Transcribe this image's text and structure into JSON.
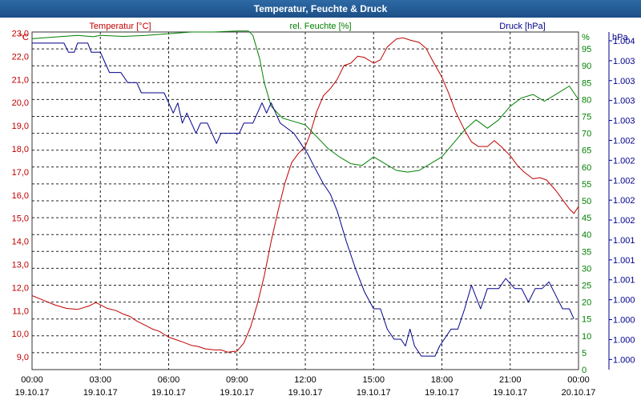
{
  "title": "Temperatur, Feuchte & Druck",
  "colors": {
    "temperature": "#c00000",
    "humidity": "#008000",
    "pressure": "#00008b",
    "title_bg": "#1f5c99"
  },
  "chart_data": {
    "type": "line",
    "title": "Temperatur, Feuchte & Druck",
    "x_ticks": [
      {
        "time": "00:00",
        "date": "19.10.17"
      },
      {
        "time": "03:00",
        "date": "19.10.17"
      },
      {
        "time": "06:00",
        "date": "19.10.17"
      },
      {
        "time": "09:00",
        "date": "19.10.17"
      },
      {
        "time": "12:00",
        "date": "19.10.17"
      },
      {
        "time": "15:00",
        "date": "19.10.17"
      },
      {
        "time": "18:00",
        "date": "19.10.17"
      },
      {
        "time": "21:00",
        "date": "19.10.17"
      },
      {
        "time": "00:00",
        "date": "20.10.17"
      }
    ],
    "xlim_hours": [
      0,
      24
    ],
    "axes": {
      "temperature": {
        "label": "Temperatur [°C]",
        "unit": "°C",
        "ylim": [
          8.45,
          23.05
        ],
        "ticks": [
          {
            "v": 9.0,
            "t": "9,0"
          },
          {
            "v": 10.0,
            "t": "10,0"
          },
          {
            "v": 11.0,
            "t": "11,0"
          },
          {
            "v": 12.0,
            "t": "12,0"
          },
          {
            "v": 13.0,
            "t": "13,0"
          },
          {
            "v": 14.0,
            "t": "14,0"
          },
          {
            "v": 15.0,
            "t": "15,0"
          },
          {
            "v": 16.0,
            "t": "16,0"
          },
          {
            "v": 17.0,
            "t": "17,0"
          },
          {
            "v": 18.0,
            "t": "18,0"
          },
          {
            "v": 19.0,
            "t": "19,0"
          },
          {
            "v": 20.0,
            "t": "20,0"
          },
          {
            "v": 21.0,
            "t": "21,0"
          },
          {
            "v": 22.0,
            "t": "22,0"
          },
          {
            "v": 23.0,
            "t": "23,0"
          }
        ]
      },
      "humidity": {
        "label": "rel. Feuchte [%]",
        "unit": "%",
        "ylim": [
          0,
          100
        ],
        "ticks": [
          {
            "v": 0,
            "t": "0"
          },
          {
            "v": 5,
            "t": "5"
          },
          {
            "v": 10,
            "t": "10"
          },
          {
            "v": 15,
            "t": "15"
          },
          {
            "v": 20,
            "t": "20"
          },
          {
            "v": 25,
            "t": "25"
          },
          {
            "v": 30,
            "t": "30"
          },
          {
            "v": 35,
            "t": "35"
          },
          {
            "v": 40,
            "t": "40"
          },
          {
            "v": 45,
            "t": "45"
          },
          {
            "v": 50,
            "t": "50"
          },
          {
            "v": 55,
            "t": "55"
          },
          {
            "v": 60,
            "t": "60"
          },
          {
            "v": 65,
            "t": "65"
          },
          {
            "v": 70,
            "t": "70"
          },
          {
            "v": 75,
            "t": "75"
          },
          {
            "v": 80,
            "t": "80"
          },
          {
            "v": 85,
            "t": "85"
          },
          {
            "v": 90,
            "t": "90"
          },
          {
            "v": 95,
            "t": "95"
          }
        ]
      },
      "pressure": {
        "label": "Druck [hPa]",
        "unit": "hPa",
        "ylim": [
          0,
          100
        ],
        "ticks": [
          {
            "v": 3,
            "t": "1.000"
          },
          {
            "v": 8.9,
            "t": "1.000"
          },
          {
            "v": 14.8,
            "t": "1.000"
          },
          {
            "v": 20.7,
            "t": "1.000"
          },
          {
            "v": 26.6,
            "t": "1.001"
          },
          {
            "v": 32.5,
            "t": "1.001"
          },
          {
            "v": 38.4,
            "t": "1.001"
          },
          {
            "v": 44.3,
            "t": "1.002"
          },
          {
            "v": 50.2,
            "t": "1.002"
          },
          {
            "v": 56.1,
            "t": "1.002"
          },
          {
            "v": 62,
            "t": "1.002"
          },
          {
            "v": 67.9,
            "t": "1.002"
          },
          {
            "v": 73.8,
            "t": "1.003"
          },
          {
            "v": 79.7,
            "t": "1.003"
          },
          {
            "v": 85.6,
            "t": "1.003"
          },
          {
            "v": 91.5,
            "t": "1.003"
          },
          {
            "v": 97.4,
            "t": "1.004"
          }
        ]
      }
    },
    "series": [
      {
        "name": "Temperatur",
        "axis": "temperature",
        "unit": "°C",
        "points": [
          [
            0,
            11.65
          ],
          [
            0.5,
            11.45
          ],
          [
            1,
            11.25
          ],
          [
            1.5,
            11.1
          ],
          [
            2,
            11.05
          ],
          [
            2.5,
            11.2
          ],
          [
            2.8,
            11.35
          ],
          [
            3,
            11.25
          ],
          [
            3.3,
            11.1
          ],
          [
            3.7,
            11.0
          ],
          [
            4,
            10.85
          ],
          [
            4.3,
            10.75
          ],
          [
            4.6,
            10.55
          ],
          [
            5,
            10.35
          ],
          [
            5.3,
            10.2
          ],
          [
            5.6,
            10.1
          ],
          [
            6,
            9.85
          ],
          [
            6.3,
            9.75
          ],
          [
            6.6,
            9.65
          ],
          [
            7,
            9.5
          ],
          [
            7.3,
            9.45
          ],
          [
            7.6,
            9.35
          ],
          [
            8,
            9.3
          ],
          [
            8.3,
            9.3
          ],
          [
            8.6,
            9.2
          ],
          [
            9,
            9.25
          ],
          [
            9.3,
            9.6
          ],
          [
            9.6,
            10.3
          ],
          [
            9.9,
            11.3
          ],
          [
            10.2,
            12.5
          ],
          [
            10.5,
            14.0
          ],
          [
            10.8,
            15.3
          ],
          [
            11.1,
            16.5
          ],
          [
            11.4,
            17.4
          ],
          [
            11.7,
            17.8
          ],
          [
            12,
            18.1
          ],
          [
            12.2,
            18.6
          ],
          [
            12.5,
            19.6
          ],
          [
            12.8,
            20.3
          ],
          [
            13.1,
            20.6
          ],
          [
            13.4,
            21.0
          ],
          [
            13.7,
            21.6
          ],
          [
            14,
            21.7
          ],
          [
            14.3,
            22.0
          ],
          [
            14.6,
            21.95
          ],
          [
            15,
            21.7
          ],
          [
            15.3,
            21.85
          ],
          [
            15.6,
            22.4
          ],
          [
            16,
            22.75
          ],
          [
            16.3,
            22.8
          ],
          [
            16.6,
            22.7
          ],
          [
            17,
            22.6
          ],
          [
            17.3,
            22.35
          ],
          [
            17.6,
            21.8
          ],
          [
            18,
            21.1
          ],
          [
            18.3,
            20.4
          ],
          [
            18.6,
            19.6
          ],
          [
            19,
            18.8
          ],
          [
            19.3,
            18.3
          ],
          [
            19.6,
            18.1
          ],
          [
            20,
            18.1
          ],
          [
            20.3,
            18.35
          ],
          [
            20.6,
            18.1
          ],
          [
            21,
            17.7
          ],
          [
            21.3,
            17.3
          ],
          [
            21.6,
            17.0
          ],
          [
            22,
            16.7
          ],
          [
            22.3,
            16.75
          ],
          [
            22.6,
            16.65
          ],
          [
            23,
            16.2
          ],
          [
            23.3,
            15.8
          ],
          [
            23.6,
            15.4
          ],
          [
            23.8,
            15.2
          ],
          [
            24,
            15.5
          ]
        ]
      },
      {
        "name": "rel. Feuchte",
        "axis": "humidity",
        "unit": "%",
        "points": [
          [
            0,
            98.0
          ],
          [
            1,
            98.5
          ],
          [
            2,
            99.0
          ],
          [
            2.7,
            98.6
          ],
          [
            3,
            99.0
          ],
          [
            4,
            98.7
          ],
          [
            5,
            99.0
          ],
          [
            6,
            99.5
          ],
          [
            7,
            100.0
          ],
          [
            8,
            100.0
          ],
          [
            9,
            100.3
          ],
          [
            9.5,
            100.3
          ],
          [
            9.7,
            99.0
          ],
          [
            10,
            92.0
          ],
          [
            10.2,
            85.0
          ],
          [
            10.5,
            78.0
          ],
          [
            11,
            74.5
          ],
          [
            11.5,
            73.5
          ],
          [
            12,
            72.5
          ],
          [
            12.5,
            69.0
          ],
          [
            13,
            65.5
          ],
          [
            13.5,
            63.0
          ],
          [
            14,
            61.0
          ],
          [
            14.5,
            60.5
          ],
          [
            15,
            63.0
          ],
          [
            15.5,
            61.0
          ],
          [
            16,
            59.0
          ],
          [
            16.5,
            58.5
          ],
          [
            17,
            59.0
          ],
          [
            17.5,
            61.0
          ],
          [
            18,
            63.0
          ],
          [
            18.5,
            67.0
          ],
          [
            19,
            71.0
          ],
          [
            19.5,
            74.0
          ],
          [
            20,
            71.5
          ],
          [
            20.5,
            74.0
          ],
          [
            21,
            78.0
          ],
          [
            21.5,
            80.5
          ],
          [
            22,
            81.5
          ],
          [
            22.5,
            79.5
          ],
          [
            23,
            81.5
          ],
          [
            23.6,
            84.0
          ],
          [
            24,
            80.0
          ]
        ]
      },
      {
        "name": "Druck",
        "axis": "pressure",
        "unit": "hPa",
        "points": [
          [
            0,
            96.7
          ],
          [
            1.4,
            96.7
          ],
          [
            1.6,
            94.0
          ],
          [
            1.85,
            94.0
          ],
          [
            2.0,
            96.7
          ],
          [
            2.45,
            96.7
          ],
          [
            2.6,
            94.0
          ],
          [
            3.0,
            94.0
          ],
          [
            3.2,
            91.0
          ],
          [
            3.4,
            88.0
          ],
          [
            3.9,
            88.0
          ],
          [
            4.2,
            85.0
          ],
          [
            4.6,
            85.0
          ],
          [
            4.8,
            82.0
          ],
          [
            5.8,
            82.0
          ],
          [
            6.0,
            79.0
          ],
          [
            6.2,
            76.0
          ],
          [
            6.4,
            79.0
          ],
          [
            6.6,
            73.0
          ],
          [
            6.8,
            76.0
          ],
          [
            7.0,
            73.0
          ],
          [
            7.2,
            70.0
          ],
          [
            7.4,
            73.0
          ],
          [
            7.7,
            73.0
          ],
          [
            7.9,
            70.0
          ],
          [
            8.1,
            67.0
          ],
          [
            8.3,
            70.0
          ],
          [
            9.1,
            70.0
          ],
          [
            9.3,
            73.0
          ],
          [
            9.7,
            73.0
          ],
          [
            9.9,
            76.0
          ],
          [
            10.1,
            79.0
          ],
          [
            10.3,
            76.0
          ],
          [
            10.5,
            79.0
          ],
          [
            10.7,
            76.0
          ],
          [
            10.9,
            73.0
          ],
          [
            11.5,
            70.0
          ],
          [
            11.8,
            67.0
          ],
          [
            12.1,
            64.0
          ],
          [
            12.4,
            60.0
          ],
          [
            12.8,
            55.0
          ],
          [
            13.1,
            52.0
          ],
          [
            13.4,
            47.0
          ],
          [
            13.8,
            38.0
          ],
          [
            14.2,
            30.0
          ],
          [
            14.6,
            23.0
          ],
          [
            15.0,
            18.0
          ],
          [
            15.3,
            18.0
          ],
          [
            15.6,
            12.0
          ],
          [
            15.9,
            9.0
          ],
          [
            16.2,
            9.0
          ],
          [
            16.4,
            7.0
          ],
          [
            16.6,
            12.0
          ],
          [
            16.8,
            7.0
          ],
          [
            17.1,
            4.0
          ],
          [
            17.7,
            4.0
          ],
          [
            17.9,
            7.0
          ],
          [
            18.4,
            12.0
          ],
          [
            18.7,
            12.0
          ],
          [
            19.0,
            18.0
          ],
          [
            19.3,
            25.0
          ],
          [
            19.7,
            18.0
          ],
          [
            20.0,
            24.0
          ],
          [
            20.5,
            24.0
          ],
          [
            20.8,
            27.0
          ],
          [
            21.2,
            24.0
          ],
          [
            21.5,
            24.0
          ],
          [
            21.8,
            20.0
          ],
          [
            22.1,
            24.0
          ],
          [
            22.4,
            24.0
          ],
          [
            22.7,
            26.0
          ],
          [
            23.0,
            22.0
          ],
          [
            23.3,
            18.0
          ],
          [
            23.6,
            18.0
          ],
          [
            23.8,
            15.0
          ]
        ]
      }
    ]
  }
}
